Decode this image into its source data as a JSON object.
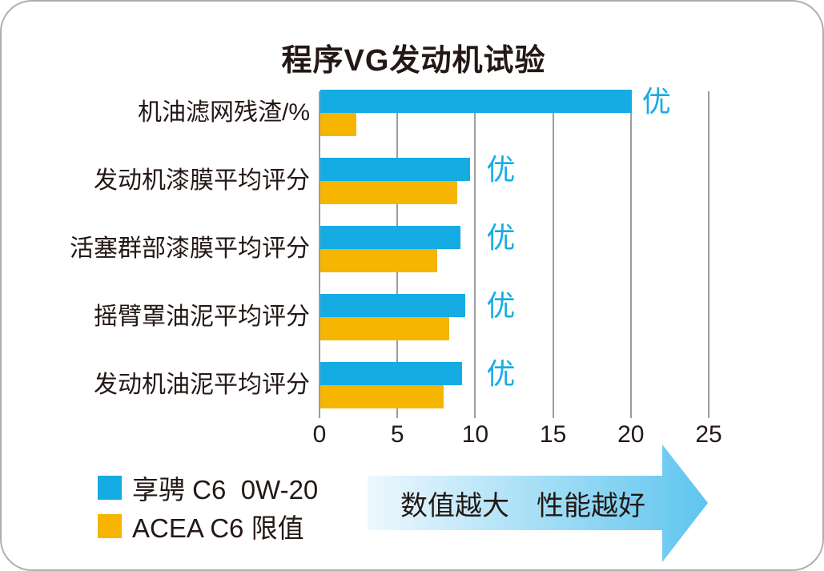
{
  "title": "程序VG发动机试验",
  "colors": {
    "series_blue": "#15ace3",
    "series_yellow": "#f5b500",
    "text_dark": "#231815",
    "gridline": "#9c9c9d",
    "arrow_gradient_start": "#eef8fe",
    "arrow_gradient_end": "#5ec5ee"
  },
  "chart_data": {
    "type": "bar",
    "orientation": "horizontal",
    "title": "程序VG发动机试验",
    "categories": [
      "机油滤网残渣/%",
      "发动机漆膜平均评分",
      "活塞群部漆膜平均评分",
      "摇臂罩油泥平均评分",
      "发动机油泥平均评分"
    ],
    "series": [
      {
        "name": "享骋 C6  0W-20",
        "color": "#15ace3",
        "values": [
          20,
          9.6,
          9.0,
          9.3,
          9.1
        ]
      },
      {
        "name": "ACEA C6 限值",
        "color": "#f5b500",
        "values": [
          2.3,
          8.8,
          7.5,
          8.3,
          7.9
        ]
      }
    ],
    "xlim": [
      0,
      25
    ],
    "xticks": [
      "0",
      "5",
      "10",
      "15",
      "20",
      "25"
    ],
    "grid": true,
    "legend_position": "bottom-left",
    "row_annotation": {
      "text": "优",
      "applies_to_series": "享骋 C6  0W-20",
      "color": "#15ace3"
    }
  },
  "legend": {
    "items": [
      {
        "label": "享骋 C6  0W-20",
        "color": "#15ace3"
      },
      {
        "label": "ACEA C6 限值",
        "color": "#f5b500"
      }
    ]
  },
  "arrow": {
    "caption": "数值越大　性能越好"
  }
}
